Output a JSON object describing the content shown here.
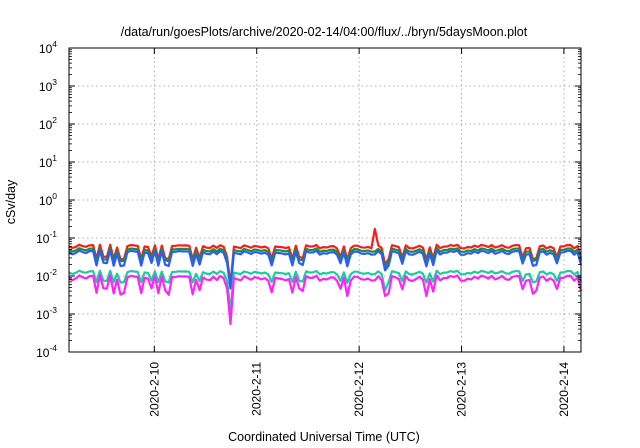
{
  "chart_data": {
    "type": "line",
    "title": "/data/run/goesPlots/archive/2020-02-14/04:00/flux/../bryn/5daysMoon.plot",
    "xlabel": "Coordinated Universal Time (UTC)",
    "ylabel": "cSv/day",
    "yscale": "log",
    "ylim": [
      0.0001,
      10000
    ],
    "xlim": [
      "2020-02-09 04:00",
      "2020-02-14 04:00"
    ],
    "grid": true,
    "legend": "none",
    "y_ticks": [
      {
        "base": "10",
        "exp": "-4",
        "value": 0.0001
      },
      {
        "base": "10",
        "exp": "-3",
        "value": 0.001
      },
      {
        "base": "10",
        "exp": "-2",
        "value": 0.01
      },
      {
        "base": "10",
        "exp": "-1",
        "value": 0.1
      },
      {
        "base": "10",
        "exp": "0",
        "value": 1
      },
      {
        "base": "10",
        "exp": "1",
        "value": 10
      },
      {
        "base": "10",
        "exp": "2",
        "value": 100
      },
      {
        "base": "10",
        "exp": "3",
        "value": 1000
      },
      {
        "base": "10",
        "exp": "4",
        "value": 10000
      }
    ],
    "x_ticks": [
      {
        "label": "2020-2-10",
        "t": "2020-02-10 00:00"
      },
      {
        "label": "2020-2-11",
        "t": "2020-02-11 00:00"
      },
      {
        "label": "2020-2-12",
        "t": "2020-02-12 00:00"
      },
      {
        "label": "2020-2-13",
        "t": "2020-02-13 00:00"
      },
      {
        "label": "2020-2-14",
        "t": "2020-02-14 00:00"
      }
    ],
    "series": [
      {
        "color": "#ff1a1a",
        "base": 0.058,
        "jitter": 0.3,
        "dip": 0.1,
        "floor": 0.045
      },
      {
        "color": "#1e8f2e",
        "base": 0.047,
        "jitter": 0.3,
        "dip": 0.1,
        "floor": 0.04
      },
      {
        "color": "#2b5cff",
        "base": 0.04,
        "jitter": 0.35,
        "dip": 0.12,
        "floor": 0.03
      },
      {
        "color": "#22c8a0",
        "base": 0.012,
        "jitter": 0.3,
        "dip": 0.1,
        "floor": 0.011
      },
      {
        "color": "#ff22ff",
        "base": 0.0085,
        "jitter": 0.45,
        "dip": 0.08,
        "floor": 0.0068
      }
    ]
  }
}
